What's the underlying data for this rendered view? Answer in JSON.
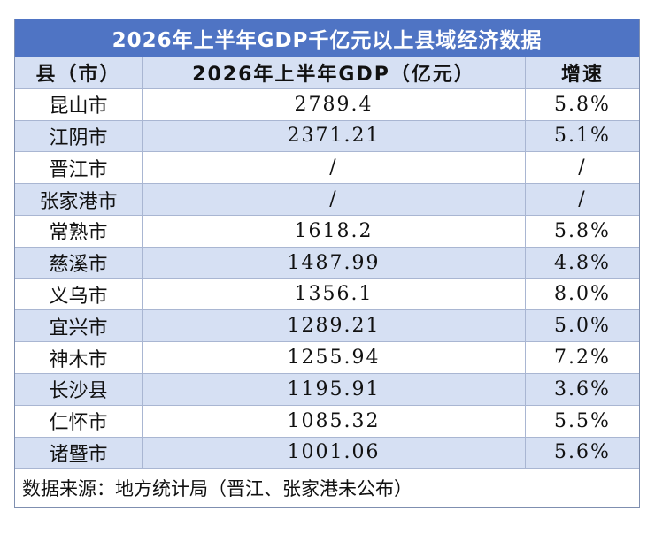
{
  "title": "2026年上半年GDP千亿元以上县域经济数据",
  "columns": {
    "name": "县（市）",
    "gdp": "2026年上半年GDP（亿元）",
    "growth": "增速"
  },
  "rows": [
    {
      "name": "昆山市",
      "gdp": "2789.4",
      "growth": "5.8%"
    },
    {
      "name": "江阴市",
      "gdp": "2371.21",
      "growth": "5.1%"
    },
    {
      "name": "晋江市",
      "gdp": "/",
      "growth": "/"
    },
    {
      "name": "张家港市",
      "gdp": "/",
      "growth": "/"
    },
    {
      "name": "常熟市",
      "gdp": "1618.2",
      "growth": "5.8%"
    },
    {
      "name": "慈溪市",
      "gdp": "1487.99",
      "growth": "4.8%"
    },
    {
      "name": "义乌市",
      "gdp": "1356.1",
      "growth": "8.0%"
    },
    {
      "name": "宜兴市",
      "gdp": "1289.21",
      "growth": "5.0%"
    },
    {
      "name": "神木市",
      "gdp": "1255.94",
      "growth": "7.2%"
    },
    {
      "name": "长沙县",
      "gdp": "1195.91",
      "growth": "3.6%"
    },
    {
      "name": "仁怀市",
      "gdp": "1085.32",
      "growth": "5.5%"
    },
    {
      "name": "诸暨市",
      "gdp": "1001.06",
      "growth": "5.6%"
    }
  ],
  "footer": "数据来源：地方统计局（晋江、张家港未公布）",
  "colors": {
    "title_bg": "#4f74c4",
    "band_bg": "#d6e0f3",
    "plain_bg": "#ffffff"
  }
}
